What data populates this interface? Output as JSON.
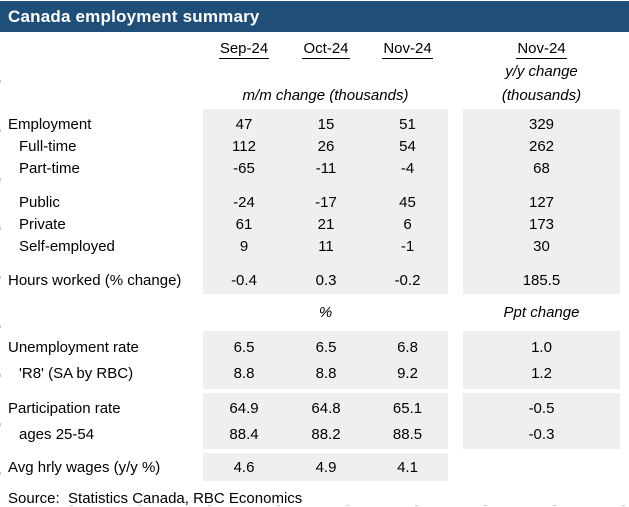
{
  "colors": {
    "header_bg": "#1f4e79",
    "band_bg": "#efefef",
    "title_text": "#ffffff",
    "body_text": "#000000"
  },
  "chart_data": {
    "type": "table",
    "title": "Canada employment summary",
    "column_headers": [
      "Sep-24",
      "Oct-24",
      "Nov-24"
    ],
    "yoy_column": {
      "header": "Nov-24",
      "subheader": "y/y change",
      "units": "(thousands)"
    },
    "mm_units_header": "m/m change (thousands)",
    "section2_units": {
      "mm": "%",
      "yoy": "Ppt change"
    },
    "rows": [
      {
        "label": "Employment",
        "indent": false,
        "values": [
          "47",
          "15",
          "51",
          "329"
        ]
      },
      {
        "label": "Full-time",
        "indent": true,
        "values": [
          "112",
          "26",
          "54",
          "262"
        ]
      },
      {
        "label": "Part-time",
        "indent": true,
        "values": [
          "-65",
          "-11",
          "-4",
          "68"
        ]
      },
      {
        "label": "Public",
        "indent": true,
        "values": [
          "-24",
          "-17",
          "45",
          "127"
        ]
      },
      {
        "label": "Private",
        "indent": true,
        "values": [
          "61",
          "21",
          "6",
          "173"
        ]
      },
      {
        "label": "Self-employed",
        "indent": true,
        "values": [
          "9",
          "11",
          "-1",
          "30"
        ]
      },
      {
        "label": "Hours worked (% change)",
        "indent": false,
        "values": [
          "-0.4",
          "0.3",
          "-0.2",
          "185.5"
        ]
      },
      {
        "label": "Unemployment rate",
        "indent": false,
        "values": [
          "6.5",
          "6.5",
          "6.8",
          "1.0"
        ]
      },
      {
        "label": "'R8' (SA by RBC)",
        "indent": true,
        "values": [
          "8.8",
          "8.8",
          "9.2",
          "1.2"
        ]
      },
      {
        "label": "Participation rate",
        "indent": false,
        "values": [
          "64.9",
          "64.8",
          "65.1",
          "-0.5"
        ]
      },
      {
        "label": "ages 25-54",
        "indent": true,
        "values": [
          "88.4",
          "88.2",
          "88.5",
          "-0.3"
        ]
      },
      {
        "label": "Avg hrly wages (y/y %)",
        "indent": false,
        "values": [
          "4.6",
          "4.9",
          "4.1",
          ""
        ]
      }
    ],
    "source": "Source:  Statistics Canada, RBC Economics"
  }
}
